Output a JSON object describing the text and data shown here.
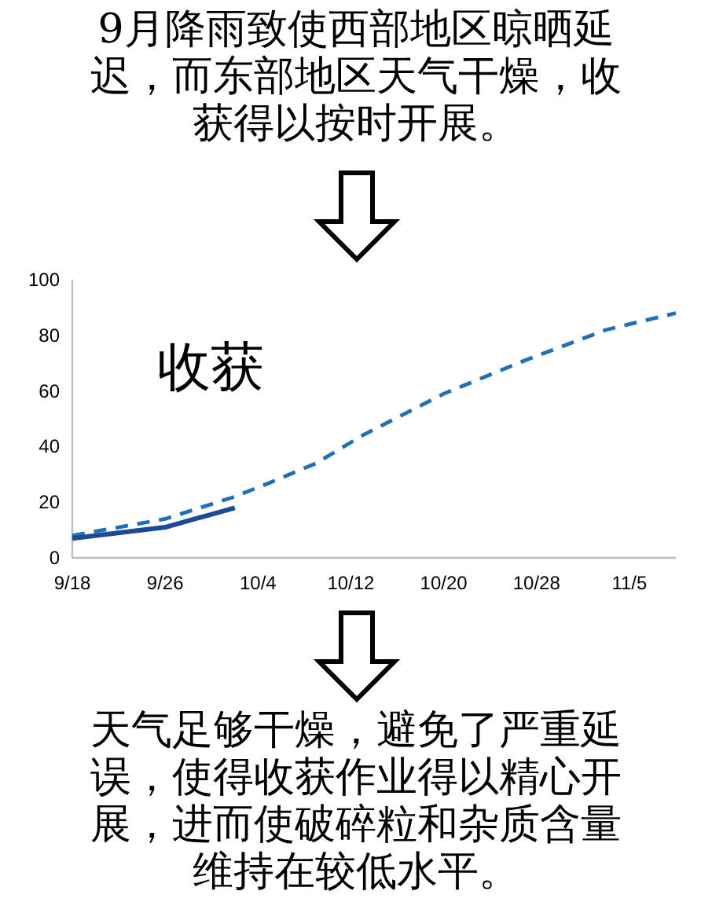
{
  "chart_data": {
    "type": "line",
    "title": "9月降雨致使西部地区晾晒延迟，而东部地区天气干燥，收获得以按时开展。",
    "annotations": [
      "收获",
      "天气足够干燥，避免了严重延误，使得收获作业得以精心开展，进而使破碎粒和杂质含量维持在较低水平。"
    ],
    "series": [
      {
        "color": "#1f70b4",
        "line_style": "dashed",
        "x": [
          "--09-18",
          "--09-26",
          "--10-02",
          "--10-05",
          "--10-09",
          "--10-13",
          "--10-20",
          "--10-27",
          "--11-03",
          "--11-09"
        ],
        "values": [
          8,
          14,
          22,
          27,
          34,
          44,
          59,
          71,
          82,
          88
        ]
      },
      {
        "color": "#1c4a94",
        "line_style": "solid",
        "x": [
          "--09-18",
          "--09-26",
          "--10-02"
        ],
        "values": [
          7,
          11,
          18
        ]
      }
    ],
    "xlim": [
      "--09-18",
      "--11-09"
    ],
    "xticks": [
      {
        "value": "--09-18",
        "label": "9/18"
      },
      {
        "value": "--09-26",
        "label": "9/26"
      },
      {
        "value": "--10-04",
        "label": "10/4"
      },
      {
        "value": "--10-12",
        "label": "10/12"
      },
      {
        "value": "--10-20",
        "label": "10/20"
      },
      {
        "value": "--10-28",
        "label": "10/28"
      },
      {
        "value": "--11-05",
        "label": "11/5"
      }
    ],
    "ylim": [
      0,
      100
    ],
    "yticks": [
      0,
      20,
      40,
      60,
      80,
      100
    ]
  }
}
